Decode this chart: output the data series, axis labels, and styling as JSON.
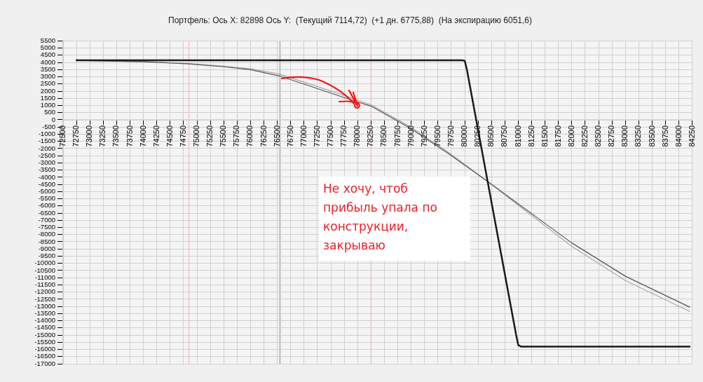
{
  "chart_data": {
    "type": "line",
    "title": "Портфель: Ось X: 82898 Ось Y:  (Текущий 7114,72)  (+1 дн. 6775,88)  (На экспирацию 6051,6)",
    "series": [
      {
        "color": "#1a1a1a",
        "x": [
          72750,
          79950,
          80000,
          80040,
          80960,
          81000,
          81050,
          84200
        ],
        "values": [
          4150,
          4150,
          4120,
          3500,
          -15000,
          -15700,
          -15800,
          -15800
        ]
      },
      {
        "color": "#555555",
        "x": [
          72750,
          74000,
          74850,
          75500,
          76000,
          76550,
          77750,
          78250,
          79000,
          79689,
          80430,
          81000,
          82000,
          83000,
          84200
        ],
        "values": [
          4150,
          4050,
          3900,
          3700,
          3500,
          3050,
          1550,
          960,
          -620,
          -2330,
          -4300,
          -5860,
          -8580,
          -10900,
          -13050
        ]
      },
      {
        "color": "#a8a8a8",
        "x": [
          72750,
          74000,
          74850,
          75500,
          76000,
          76550,
          77750,
          78250,
          79000,
          79689,
          80430,
          81000,
          82000,
          83000,
          84200
        ],
        "values": [
          4150,
          4070,
          3920,
          3740,
          3560,
          3180,
          1700,
          1050,
          -520,
          -2250,
          -4300,
          -5950,
          -8820,
          -11200,
          -13350
        ]
      }
    ],
    "xlim": [
      72500,
      84250
    ],
    "xticks": [
      72500,
      72750,
      73000,
      73250,
      73500,
      73750,
      74000,
      74250,
      74500,
      74750,
      75000,
      75250,
      75500,
      75750,
      76000,
      76250,
      76500,
      76750,
      77000,
      77250,
      77500,
      77750,
      78000,
      78250,
      78500,
      78750,
      79000,
      79250,
      79500,
      79750,
      80000,
      80250,
      80500,
      80750,
      81000,
      81250,
      81500,
      81750,
      82000,
      82250,
      82500,
      82750,
      83000,
      83250,
      83500,
      83750,
      84000,
      84250
    ],
    "ylim": [
      -17000,
      5500
    ],
    "yticks": [
      -17000,
      -16500,
      -16000,
      -15500,
      -15000,
      -14500,
      -14000,
      -13500,
      -13000,
      -12500,
      -12000,
      -11500,
      -11000,
      -10500,
      -10000,
      -9500,
      -9000,
      -8500,
      -8000,
      -7500,
      -7000,
      -6500,
      -6000,
      -5500,
      -5000,
      -4500,
      -4000,
      -3500,
      -3000,
      -2500,
      -2000,
      -1500,
      -1000,
      -500,
      0,
      500,
      1000,
      1500,
      2000,
      2500,
      3000,
      3500,
      4000,
      4500,
      5000,
      5500
    ],
    "grid": true,
    "marker": "none",
    "ref_lines": [
      {
        "axis": "x",
        "value": 74850,
        "color": "#ffc0cb"
      },
      {
        "axis": "x",
        "value": 76550,
        "color": "#a0a8b8"
      },
      {
        "axis": "x",
        "value": 78250,
        "color": "#ffc0cb"
      }
    ],
    "annotations": [
      "Не хочу, чтоб прибыль упала по конструкции, закрываю"
    ]
  }
}
